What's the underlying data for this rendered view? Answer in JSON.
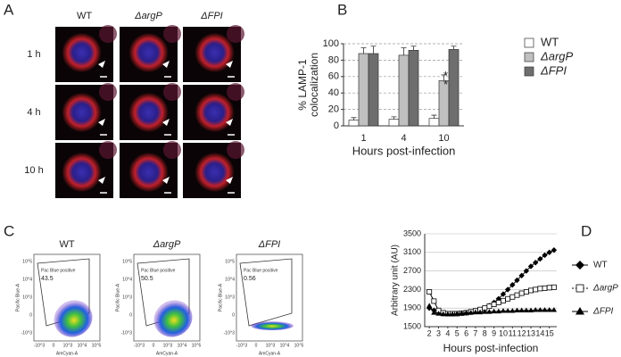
{
  "panels": {
    "A": {
      "label": "A",
      "columns": [
        "WT",
        "ΔargP",
        "ΔFPI"
      ],
      "rows": [
        "1 h",
        "4 h",
        "10 h"
      ]
    },
    "C": {
      "label": "C",
      "titles": [
        "WT",
        "ΔargP",
        "ΔFPI"
      ],
      "gate": "Pac Blue positive",
      "percents": [
        "43.5",
        "50.5",
        "0.56"
      ],
      "ylabel": "Pacific Blue-A",
      "xlabel": "AmCyan-A",
      "yticks": [
        "10^5",
        "10^4",
        "10^3",
        "0",
        "-10^3"
      ],
      "xticks": [
        "-10^3",
        "0",
        "10^3",
        "10^4",
        "10^5"
      ]
    }
  },
  "chart_data": [
    {
      "type": "bar",
      "label": "B",
      "categories": [
        "1",
        "4",
        "10"
      ],
      "series": [
        {
          "name": "WT",
          "color": "#ffffff",
          "values": [
            7,
            8,
            9
          ],
          "errors": [
            3,
            3,
            4
          ]
        },
        {
          "name": "ΔargP",
          "color": "#c0c0c0",
          "values": [
            88,
            86,
            55
          ],
          "errors": [
            7,
            9,
            7
          ]
        },
        {
          "name": "ΔFPI",
          "color": "#6e6e6e",
          "values": [
            88,
            92,
            93
          ],
          "errors": [
            9,
            5,
            4
          ]
        }
      ],
      "ylim": [
        0,
        100
      ],
      "yticks": [
        0,
        20,
        40,
        60,
        80,
        100
      ],
      "grid": true,
      "ylabel": [
        "% LAMP-1",
        "colocalization"
      ],
      "xlabel": "Hours post-infection",
      "annotations": [
        "*",
        "*"
      ]
    },
    {
      "type": "line",
      "label": "D",
      "x": [
        2,
        2.5,
        3,
        3.5,
        4,
        4.5,
        5,
        5.5,
        6,
        6.5,
        7,
        7.5,
        8,
        8.5,
        9,
        9.5,
        10,
        10.5,
        11,
        11.5,
        12,
        12.5,
        13,
        13.5,
        14,
        14.5,
        15,
        15.5
      ],
      "series": [
        {
          "name": "WT",
          "color": "#000000",
          "marker": "diamond",
          "values": [
            1900,
            1850,
            1800,
            1780,
            1780,
            1780,
            1780,
            1790,
            1800,
            1810,
            1820,
            1840,
            1880,
            1950,
            2020,
            2100,
            2200,
            2300,
            2400,
            2500,
            2600,
            2700,
            2800,
            2880,
            2960,
            3040,
            3100,
            3150
          ]
        },
        {
          "name": "ΔargP",
          "color": "#000000",
          "marker": "square",
          "values": [
            2250,
            2050,
            1850,
            1800,
            1780,
            1780,
            1780,
            1790,
            1800,
            1820,
            1840,
            1870,
            1900,
            1940,
            1980,
            2020,
            2060,
            2100,
            2140,
            2180,
            2220,
            2250,
            2280,
            2300,
            2320,
            2330,
            2340,
            2350
          ]
        },
        {
          "name": "ΔFPI",
          "color": "#000000",
          "marker": "triangle",
          "values": [
            1950,
            1800,
            1780,
            1770,
            1770,
            1770,
            1780,
            1790,
            1800,
            1800,
            1810,
            1810,
            1820,
            1820,
            1830,
            1830,
            1840,
            1840,
            1840,
            1850,
            1850,
            1850,
            1850,
            1860,
            1860,
            1860,
            1860,
            1860
          ]
        }
      ],
      "xlim": [
        1.5,
        15.8
      ],
      "xticks": [
        2,
        3,
        4,
        5,
        6,
        7,
        8,
        9,
        10,
        11,
        12,
        13,
        14,
        15
      ],
      "ylim": [
        1500,
        3500
      ],
      "yticks": [
        1500,
        1900,
        2300,
        2700,
        3100,
        3500
      ],
      "grid": true,
      "ylabel": "Arbitrary unit (AU)",
      "xlabel": "Hours post-infection"
    }
  ]
}
